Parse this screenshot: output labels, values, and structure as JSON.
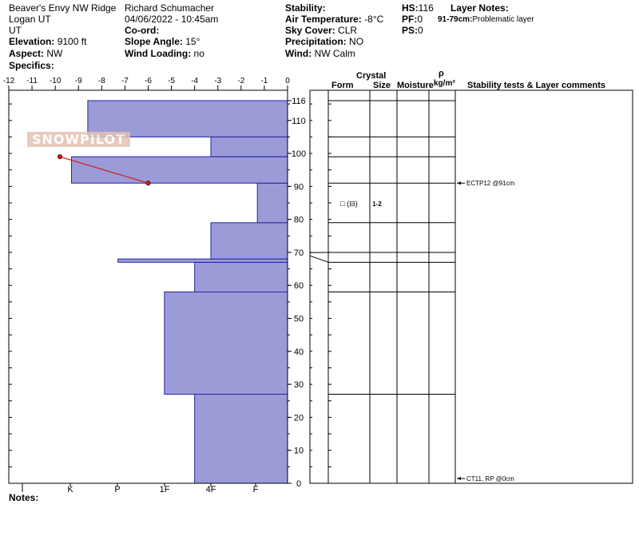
{
  "header": {
    "location": "Beaver's Envy NW Ridge",
    "region": "Logan UT",
    "state": "UT",
    "elevation_label": "Elevation:",
    "elevation_value": "9100 ft",
    "aspect_label": "Aspect:",
    "aspect_value": "NW",
    "specifics_label": "Specifics:",
    "observer": "Richard Schumacher",
    "datetime": "04/06/2022 - 10:45am",
    "coord_label": "Co-ord:",
    "slope_label": "Slope Angle:",
    "slope_value": "15°",
    "wind_loading_label": "Wind Loading:",
    "wind_loading_value": "no",
    "stability_label": "Stability:",
    "air_temp_label": "Air Temperature:",
    "air_temp_value": "-8°C",
    "sky_label": "Sky Cover:",
    "sky_value": "CLR",
    "precip_label": "Precipitation:",
    "precip_value": "NO",
    "wind_label": "Wind:",
    "wind_value": "NW Calm",
    "hs_label": "HS:",
    "hs_value": "116",
    "pf_label": "PF:",
    "pf_value": "0",
    "ps_label": "PS:",
    "ps_value": "0",
    "layer_notes_label": "Layer Notes:",
    "layer_note": "91-79cm:",
    "layer_note_text": "Problematic layer"
  },
  "logo_text": "SNOWPILOT",
  "notes_label": "Notes:",
  "columns": {
    "crystal": "Crystal",
    "form": "Form",
    "size": "Size",
    "moisture": "Moisture",
    "rho": "ρ",
    "density_unit": "kg/m³",
    "stability": "Stability tests & Layer comments"
  },
  "chart_data": {
    "type": "snow-profile",
    "temperature_axis": {
      "ticks": [
        "-12",
        "-11",
        "-10",
        "-9",
        "-8",
        "-7",
        "-6",
        "-5",
        "-4",
        "-3",
        "-2",
        "-1",
        "0"
      ],
      "range": [
        -12,
        0
      ]
    },
    "height_axis": {
      "range": [
        0,
        116
      ],
      "ticks": [
        "116",
        "110",
        "100",
        "90",
        "80",
        "70",
        "60",
        "50",
        "40",
        "30",
        "20",
        "10",
        "0"
      ]
    },
    "hardness_labels": [
      "I",
      "K",
      "P",
      "1F",
      "4F",
      "F"
    ],
    "hardness_layers": [
      {
        "bottom": 0,
        "top": 27,
        "hardness_index": 4
      },
      {
        "bottom": 27,
        "top": 58,
        "hardness_index": 5.3
      },
      {
        "bottom": 58,
        "top": 67,
        "hardness_index": 4
      },
      {
        "bottom": 67,
        "top": 68,
        "hardness_index": 7.3
      },
      {
        "bottom": 68,
        "top": 79,
        "hardness_index": 3.3
      },
      {
        "bottom": 79,
        "top": 91,
        "hardness_index": 1.3
      },
      {
        "bottom": 91,
        "top": 99,
        "hardness_index": 9.3
      },
      {
        "bottom": 99,
        "top": 105,
        "hardness_index": 3.3
      },
      {
        "bottom": 105,
        "top": 116,
        "hardness_index": 8.6
      }
    ],
    "temperature_profile": [
      {
        "temp": -9.8,
        "height": 99
      },
      {
        "temp": -6.0,
        "height": 91
      }
    ],
    "crystal_layer": {
      "height": 85,
      "form": "□ (⊟)",
      "size": "1-2"
    },
    "layer_lines": [
      116,
      105,
      99,
      91,
      79,
      70,
      67,
      58,
      27
    ],
    "tests": [
      {
        "label": "ECTP12 @91cm",
        "height": 91
      },
      {
        "label": "CT11, RP @0cm",
        "height": 0
      }
    ]
  }
}
